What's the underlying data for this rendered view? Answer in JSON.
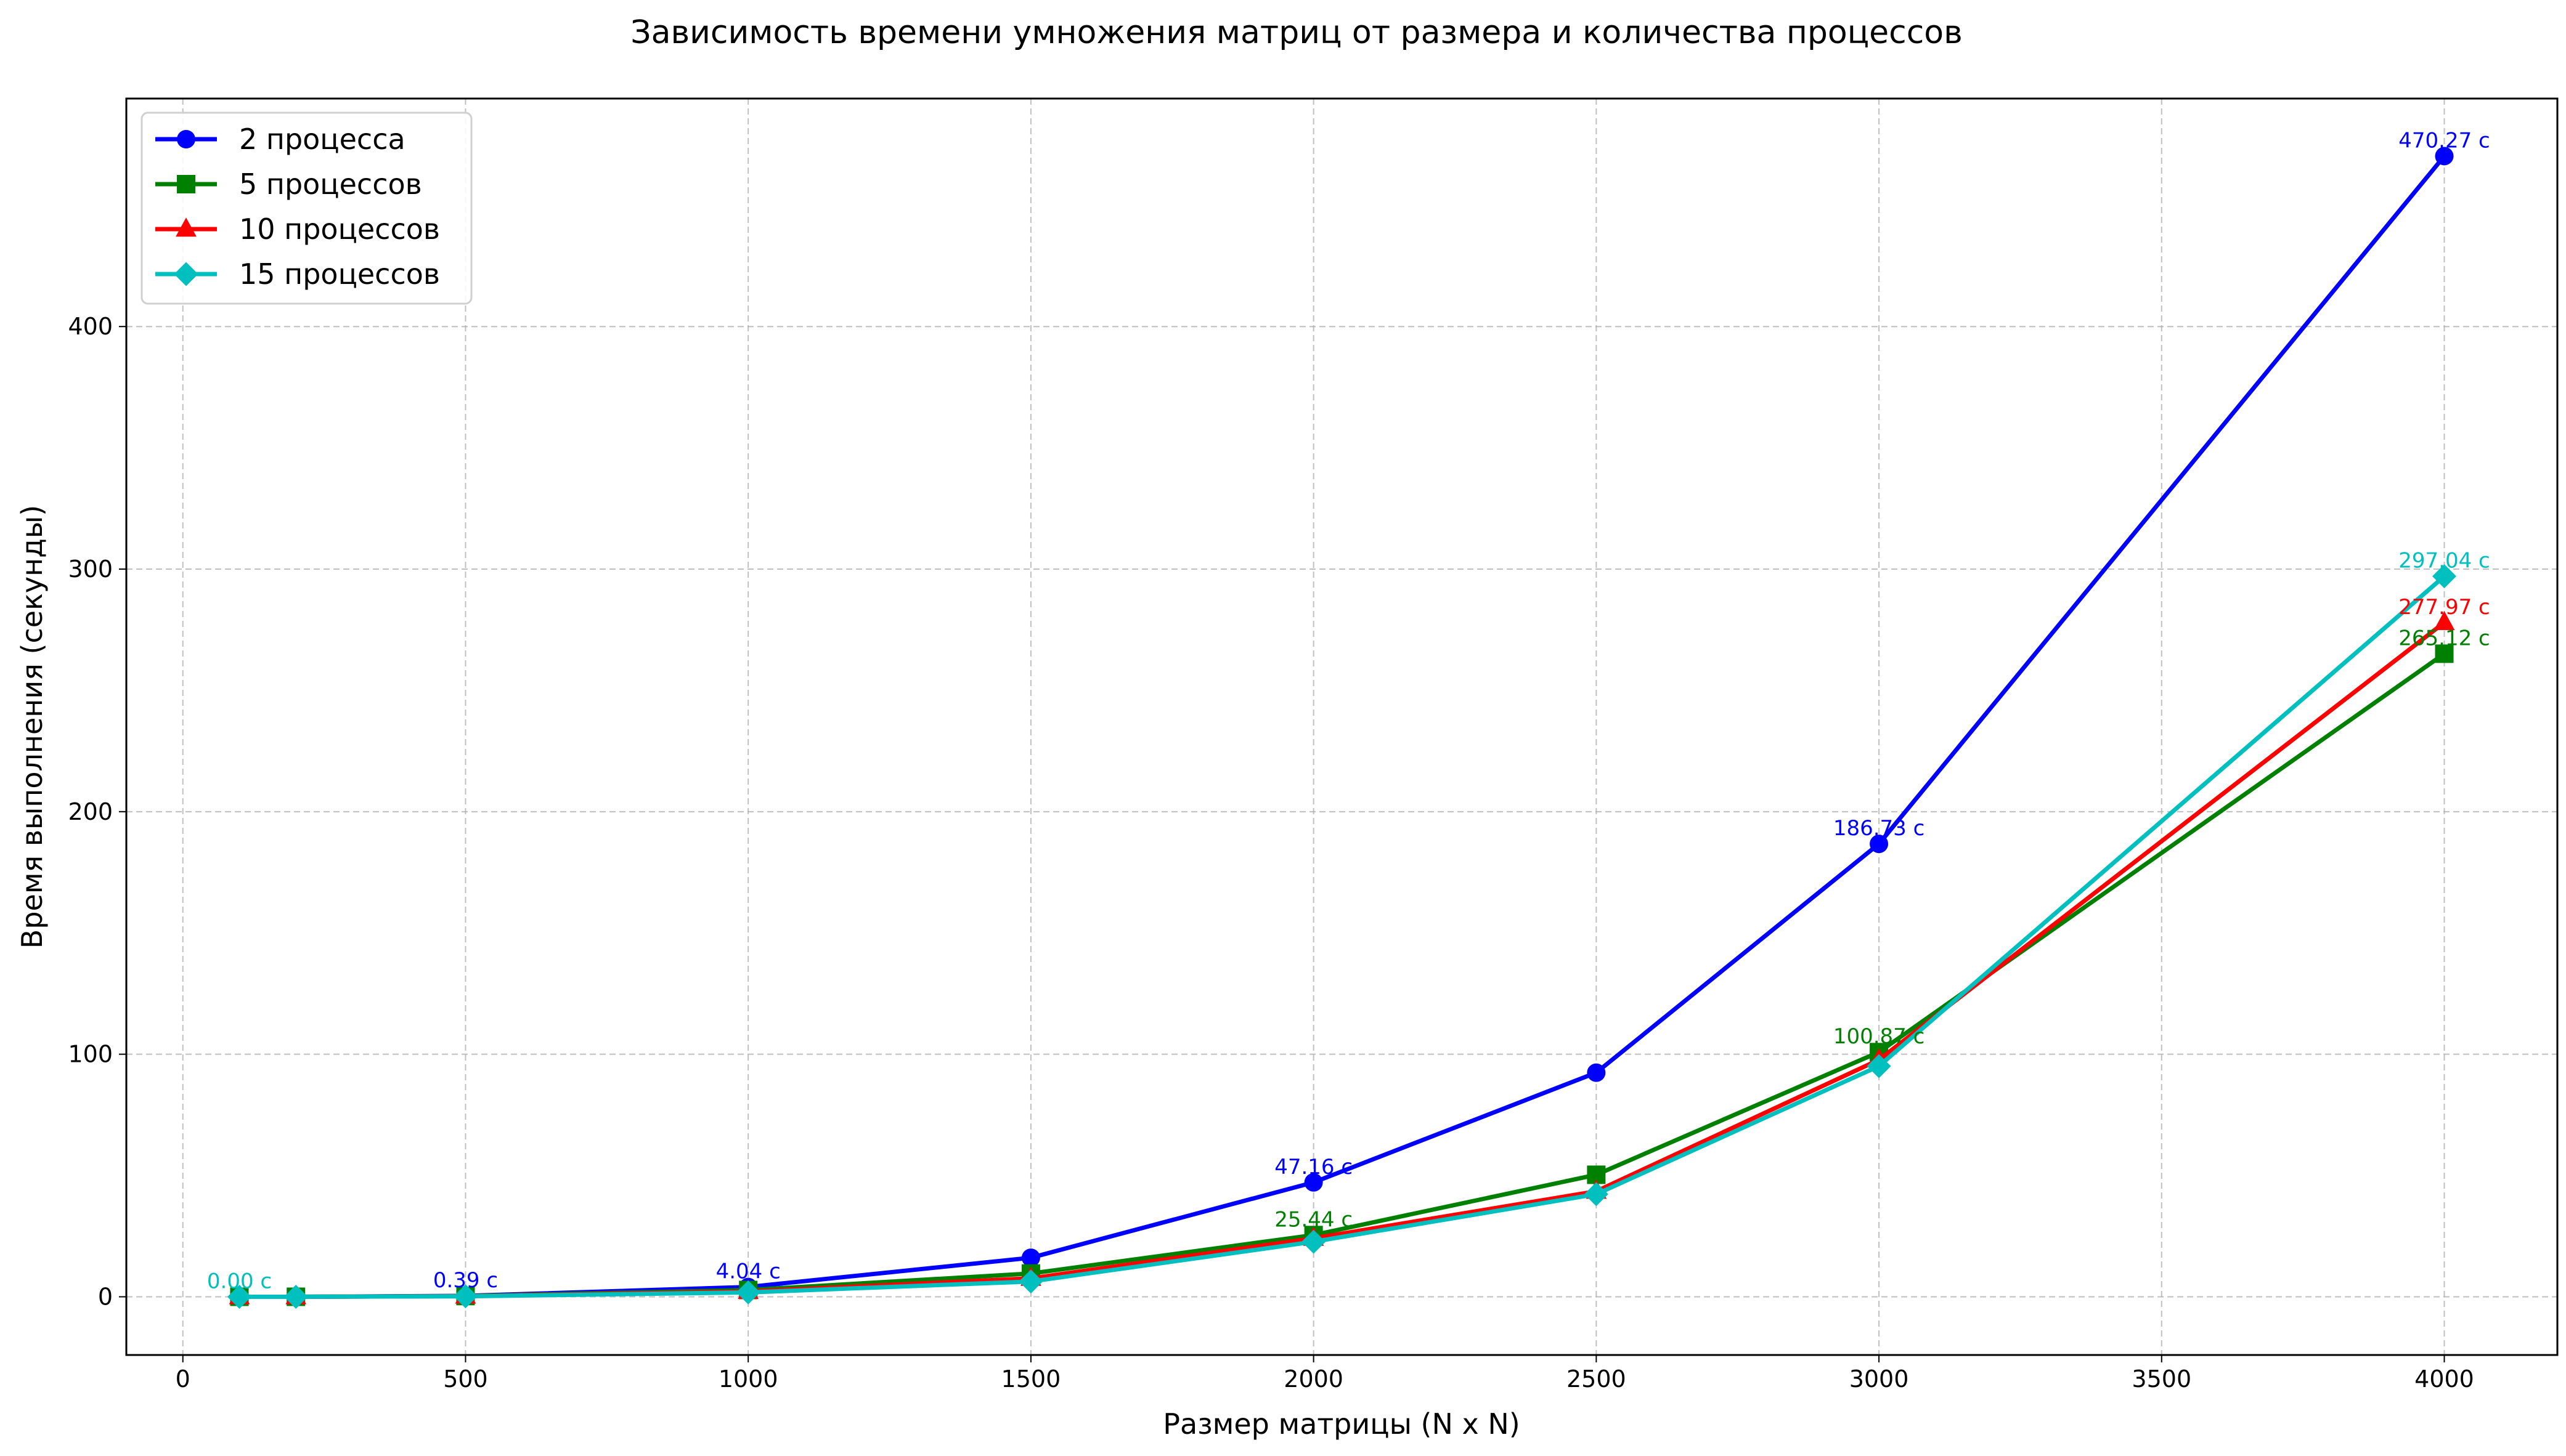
{
  "chart_data": {
    "type": "line",
    "title": "Зависимость времени умножения матриц от размера и количества процессов",
    "xlabel": "Размер матрицы (N x N)",
    "ylabel": "Время выполнения (секунды)",
    "xlim": [
      -100,
      4200
    ],
    "ylim": [
      -24,
      494
    ],
    "x_ticks": [
      0,
      500,
      1000,
      1500,
      2000,
      2500,
      3000,
      3500,
      4000
    ],
    "y_ticks": [
      0,
      100,
      200,
      300,
      400
    ],
    "grid": true,
    "legend_position": "top-left",
    "x": [
      100,
      200,
      500,
      1000,
      1500,
      2000,
      2500,
      3000,
      4000
    ],
    "series": [
      {
        "name": "2 процесса",
        "color": "#0000ff",
        "marker": "circle",
        "values": [
          0.0,
          0.0,
          0.39,
          4.04,
          16.1,
          47.16,
          92.4,
          186.73,
          470.27
        ],
        "labels": [
          "",
          "",
          "0.39 с",
          "4.04 с",
          "",
          "47.16 с",
          "",
          "186.73 с",
          "470.27 с"
        ]
      },
      {
        "name": "5 процессов",
        "color": "#008000",
        "marker": "square",
        "values": [
          0.0,
          0.0,
          0.3,
          2.8,
          9.6,
          25.44,
          50.3,
          100.87,
          265.12
        ],
        "labels": [
          "",
          "",
          "",
          "",
          "",
          "25.44 с",
          "",
          "100.87 с",
          "265.12 с"
        ]
      },
      {
        "name": "10 процессов",
        "color": "#ff0000",
        "marker": "triangle",
        "values": [
          0.0,
          0.0,
          0.25,
          2.2,
          7.6,
          24.1,
          43.5,
          97.7,
          277.97
        ],
        "labels": [
          "",
          "",
          "",
          "",
          "",
          "",
          "",
          "",
          "277.97 с"
        ]
      },
      {
        "name": "15 процессов",
        "color": "#00bfbf",
        "marker": "diamond",
        "values": [
          0.0,
          0.0,
          0.2,
          1.8,
          6.3,
          22.7,
          42.3,
          95.1,
          297.04
        ],
        "labels": [
          "0.00 с",
          "",
          "",
          "",
          "",
          "",
          "",
          "",
          "297.04 с"
        ]
      }
    ]
  }
}
